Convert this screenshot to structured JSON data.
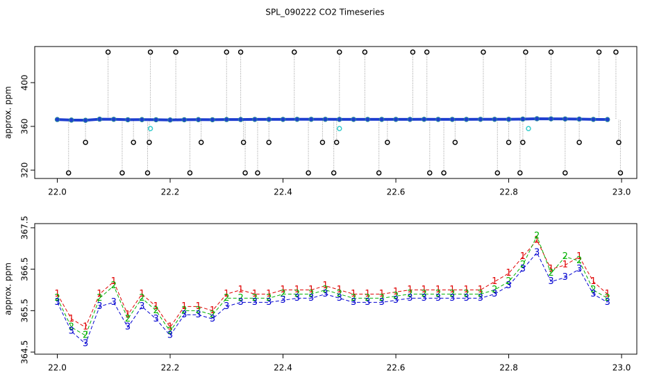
{
  "chart_data": [
    {
      "type": "scatter",
      "title": "SPL_090222  CO2 Timeseries",
      "ylabel": "approx. ppm",
      "xlim": [
        21.96,
        23.027
      ],
      "ylim": [
        312.4,
        433
      ],
      "xticks": [
        {
          "value": 22,
          "label": "22.0"
        },
        {
          "value": 22.2,
          "label": "22.2"
        },
        {
          "value": 22.4,
          "label": "22.4"
        },
        {
          "value": 22.6,
          "label": "22.6"
        },
        {
          "value": 22.8,
          "label": "22.8"
        },
        {
          "value": 23,
          "label": "23.0"
        }
      ],
      "yticks": [
        320,
        360,
        400
      ],
      "x": [
        22.0,
        22.025,
        22.05,
        22.075,
        22.1,
        22.125,
        22.15,
        22.175,
        22.2,
        22.225,
        22.25,
        22.275,
        22.3,
        22.325,
        22.35,
        22.375,
        22.4,
        22.425,
        22.45,
        22.475,
        22.5,
        22.525,
        22.55,
        22.575,
        22.6,
        22.625,
        22.65,
        22.675,
        22.7,
        22.725,
        22.75,
        22.775,
        22.8,
        22.825,
        22.85,
        22.875,
        22.9,
        22.925,
        22.95,
        22.975
      ],
      "series": [
        {
          "color": "#1f3fd0",
          "values": [
            366.3,
            365.8,
            365.6,
            366.6,
            366.5,
            366.1,
            366.2,
            366.1,
            365.9,
            366.1,
            366.2,
            366.1,
            366.3,
            366.3,
            366.4,
            366.4,
            366.4,
            366.5,
            366.5,
            366.5,
            366.4,
            366.4,
            366.4,
            366.4,
            366.4,
            366.4,
            366.5,
            366.4,
            366.4,
            366.4,
            366.5,
            366.5,
            366.5,
            366.7,
            367.0,
            366.9,
            366.8,
            366.7,
            366.4,
            366.3
          ]
        }
      ],
      "outliers": {
        "color": "#000000",
        "x": [
          22.02,
          22.05,
          22.09,
          22.115,
          22.135,
          22.16,
          22.163,
          22.165,
          22.21,
          22.235,
          22.255,
          22.3,
          22.325,
          22.33,
          22.333,
          22.355,
          22.375,
          22.42,
          22.445,
          22.47,
          22.49,
          22.495,
          22.5,
          22.545,
          22.57,
          22.585,
          22.63,
          22.655,
          22.66,
          22.685,
          22.705,
          22.755,
          22.78,
          22.8,
          22.82,
          22.825,
          22.83,
          22.875,
          22.9,
          22.925,
          22.96,
          22.99,
          22.995,
          22.998
        ],
        "values": [
          317.5,
          345.4,
          427.9,
          317.5,
          345.4,
          317.5,
          345.4,
          427.9,
          427.9,
          317.5,
          345.4,
          427.9,
          427.9,
          345.4,
          317.5,
          317.5,
          345.4,
          427.9,
          317.5,
          345.4,
          317.5,
          345.4,
          427.9,
          427.9,
          317.5,
          345.4,
          427.9,
          427.9,
          317.5,
          317.5,
          345.4,
          427.9,
          317.5,
          345.4,
          317.5,
          345.4,
          427.9,
          427.9,
          317.5,
          345.4,
          427.9,
          427.9,
          345.4,
          317.5
        ]
      },
      "flagged": {
        "color": "#33cccc",
        "x": [
          22.165,
          22.5,
          22.835
        ],
        "values": [
          358,
          358,
          358
        ]
      }
    },
    {
      "type": "line",
      "ylabel": "approx. ppm",
      "xlim": [
        21.96,
        23.027
      ],
      "ylim": [
        364.45,
        367.6
      ],
      "xticks": [
        {
          "value": 22,
          "label": "22.0"
        },
        {
          "value": 22.2,
          "label": "22.2"
        },
        {
          "value": 22.4,
          "label": "22.4"
        },
        {
          "value": 22.6,
          "label": "22.6"
        },
        {
          "value": 22.8,
          "label": "22.8"
        },
        {
          "value": 23,
          "label": "23.0"
        }
      ],
      "yticks": [
        364.5,
        365.5,
        366.5,
        367.5
      ],
      "x": [
        22.0,
        22.025,
        22.05,
        22.075,
        22.1,
        22.125,
        22.15,
        22.175,
        22.2,
        22.225,
        22.25,
        22.275,
        22.3,
        22.325,
        22.35,
        22.375,
        22.4,
        22.425,
        22.45,
        22.475,
        22.5,
        22.525,
        22.55,
        22.575,
        22.6,
        22.625,
        22.65,
        22.675,
        22.7,
        22.725,
        22.75,
        22.775,
        22.8,
        22.825,
        22.85,
        22.875,
        22.9,
        22.925,
        22.95,
        22.975
      ],
      "series": [
        {
          "name": "1",
          "color": "#e00000",
          "values": [
            365.9,
            365.3,
            365.1,
            365.9,
            366.2,
            365.4,
            365.9,
            365.6,
            365.1,
            365.6,
            365.6,
            365.5,
            365.9,
            366.0,
            365.9,
            365.9,
            366.0,
            366.0,
            366.0,
            366.1,
            366.0,
            365.9,
            365.9,
            365.9,
            365.95,
            366.0,
            366.0,
            366.0,
            366.0,
            366.0,
            366.0,
            366.2,
            366.4,
            366.8,
            367.2,
            366.5,
            366.6,
            366.8,
            366.2,
            365.9
          ]
        },
        {
          "name": "2",
          "color": "#00b000",
          "values": [
            365.8,
            365.1,
            364.9,
            365.8,
            366.1,
            365.3,
            365.8,
            365.5,
            365.0,
            365.5,
            365.5,
            365.4,
            365.8,
            365.8,
            365.8,
            365.8,
            365.9,
            365.9,
            365.9,
            366.0,
            365.9,
            365.8,
            365.8,
            365.8,
            365.85,
            365.9,
            365.9,
            365.9,
            365.9,
            365.9,
            365.9,
            366.0,
            366.2,
            366.6,
            367.3,
            366.4,
            366.8,
            366.7,
            366.0,
            365.8
          ]
        },
        {
          "name": "3",
          "color": "#0000d0",
          "values": [
            365.7,
            365.0,
            364.7,
            365.6,
            365.7,
            365.1,
            365.6,
            365.3,
            364.9,
            365.4,
            365.4,
            365.3,
            365.6,
            365.7,
            365.7,
            365.7,
            365.75,
            365.8,
            365.8,
            365.9,
            365.8,
            365.7,
            365.7,
            365.7,
            365.75,
            365.8,
            365.8,
            365.8,
            365.8,
            365.8,
            365.8,
            365.9,
            366.1,
            366.5,
            366.9,
            366.2,
            366.3,
            366.5,
            365.9,
            365.7
          ]
        }
      ]
    }
  ]
}
